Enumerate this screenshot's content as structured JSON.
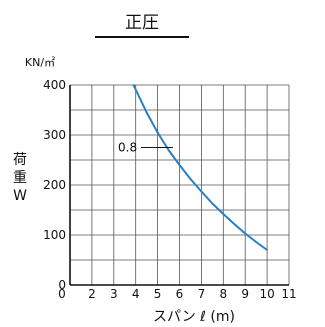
{
  "chart_data": {
    "type": "line",
    "title": "正圧",
    "y_unit": "KN/㎡",
    "ylabel_chars": [
      "荷",
      "重",
      "W"
    ],
    "xlabel": "スパン ℓ (m)",
    "x_ticks": [
      0,
      2,
      3,
      4,
      5,
      6,
      7,
      8,
      9,
      10,
      11
    ],
    "y_ticks": [
      0,
      100,
      200,
      300,
      400
    ],
    "xlim": [
      1,
      11
    ],
    "ylim": [
      0,
      400
    ],
    "grid": true,
    "colors": {
      "series": "#2a7fc4",
      "grid": "#555555",
      "axis": "#111111"
    },
    "series": [
      {
        "name": "0.8",
        "x": [
          3.9,
          4.5,
          5.0,
          5.5,
          6.0,
          6.5,
          7.0,
          7.5,
          8.0,
          8.5,
          9.0,
          9.5,
          10.0
        ],
        "y": [
          400,
          345,
          305,
          270,
          240,
          212,
          187,
          163,
          142,
          122,
          103,
          86,
          70
        ]
      }
    ],
    "annotation": {
      "text": "0.8",
      "x": 5.7,
      "y": 275
    }
  }
}
